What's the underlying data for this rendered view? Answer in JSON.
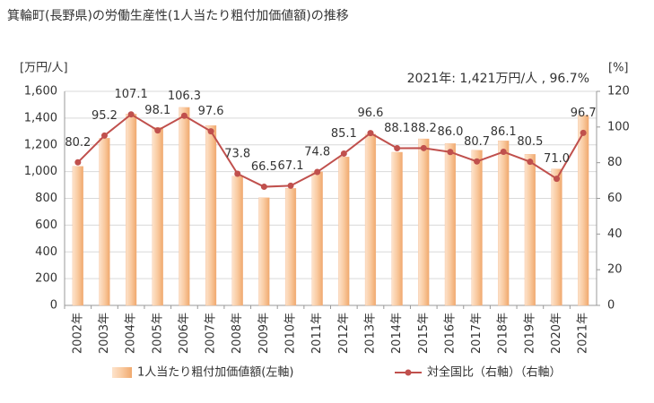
{
  "chart_data": {
    "type": "bar_line",
    "title": "箕輪町(長野県)の労働生産性(1人当たり粗付加価値額)の推移",
    "y_label": "[万円/人]",
    "y2_label": "[%]",
    "annotation": "2021年: 1,421万円/人 , 96.7%",
    "categories": [
      "2002年",
      "2003年",
      "2004年",
      "2005年",
      "2006年",
      "2007年",
      "2008年",
      "2009年",
      "2010年",
      "2011年",
      "2012年",
      "2013年",
      "2014年",
      "2015年",
      "2016年",
      "2017年",
      "2018年",
      "2019年",
      "2020年",
      "2021年"
    ],
    "series": [
      {
        "name": "1人当たり粗付加価値額(左軸)",
        "type": "bar",
        "color": "#f4b183",
        "values": [
          1040,
          1250,
          1430,
          1330,
          1480,
          1345,
          965,
          805,
          875,
          1000,
          1110,
          1280,
          1145,
          1245,
          1210,
          1160,
          1230,
          1130,
          1020,
          1421
        ]
      },
      {
        "name": "対全国比（右軸）（右軸）",
        "type": "line",
        "axis": "y2",
        "color": "#c0504d",
        "values": [
          80.2,
          95.2,
          107.1,
          98.1,
          106.3,
          97.6,
          73.8,
          66.5,
          67.1,
          74.8,
          85.1,
          96.6,
          88.1,
          88.2,
          86.0,
          80.7,
          86.1,
          80.5,
          71.0,
          96.7
        ],
        "value_labels": [
          "80.2",
          "95.2",
          "107.1",
          "98.1",
          "106.3",
          "97.6",
          "73.8",
          "66.5",
          "67.1",
          "74.8",
          "85.1",
          "96.6",
          "88.1",
          "88.2",
          "86.0",
          "80.7",
          "86.1",
          "80.5",
          "71.0",
          "96.7"
        ]
      }
    ],
    "ylim": [
      0,
      1600
    ],
    "yticks": [
      0,
      200,
      400,
      600,
      800,
      {
        "value": 1000,
        "label": "1,000"
      },
      {
        "value": 1200,
        "label": "1,200"
      },
      {
        "value": 1400,
        "label": "1,400"
      },
      {
        "value": 1600,
        "label": "1,600"
      }
    ],
    "y2lim": [
      0,
      120
    ],
    "y2ticks": [
      0,
      20,
      40,
      60,
      80,
      100,
      120
    ],
    "grid": true
  }
}
